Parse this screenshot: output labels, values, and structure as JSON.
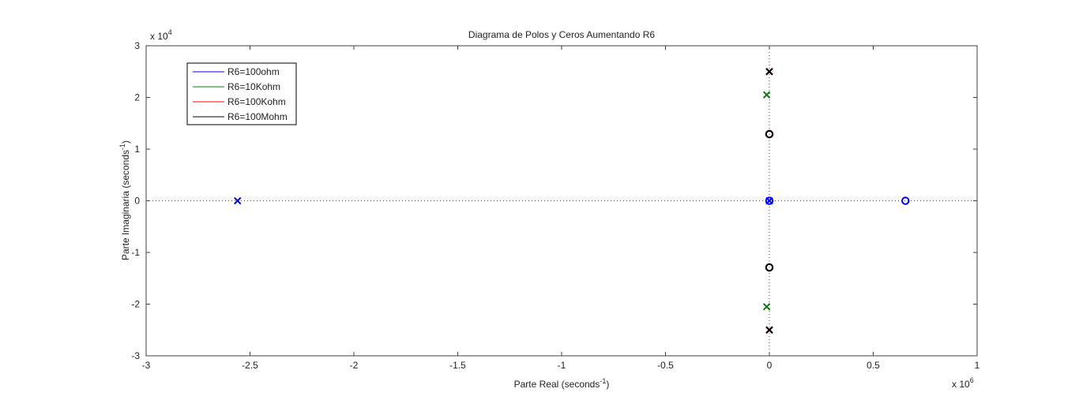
{
  "chart_data": {
    "type": "scatter",
    "title": "Diagrama de Polos y Ceros Aumentando R6",
    "xlabel": "Parte Real (seconds",
    "xlabel_sup": "-1",
    "xlabel_tail": ")",
    "ylabel": "Parte Imaginaria (seconds",
    "ylabel_sup": "-1",
    "ylabel_tail": ")",
    "x_exponent_base": "x 10",
    "x_exponent": "6",
    "y_exponent_base": "x 10",
    "y_exponent": "4",
    "xlim": [
      -3,
      1
    ],
    "ylim": [
      -3,
      3
    ],
    "xticks": [
      -3,
      -2.5,
      -2,
      -1.5,
      -1,
      -0.5,
      0,
      0.5,
      1
    ],
    "xtick_labels": [
      "-3",
      "-2.5",
      "-2",
      "-1.5",
      "-1",
      "-0.5",
      "0",
      "0.5",
      "1"
    ],
    "yticks": [
      -3,
      -2,
      -1,
      0,
      1,
      2,
      3
    ],
    "ytick_labels": [
      "-3",
      "-2",
      "-1",
      "0",
      "1",
      "2",
      "3"
    ],
    "legend_position": "top-left",
    "grid": false,
    "zero_axes_dotted": true,
    "series": [
      {
        "name": "R6=100ohm",
        "color": "#0000ff",
        "poles": [
          [
            -2.56,
            0
          ],
          [
            0,
            0
          ]
        ],
        "zeros": [
          [
            0.655,
            0
          ],
          [
            0,
            0
          ]
        ]
      },
      {
        "name": "R6=10Kohm",
        "color": "#008000",
        "poles": [
          [
            -0.013,
            2.05
          ],
          [
            -0.013,
            -2.05
          ]
        ],
        "zeros": [
          [
            0,
            1.29
          ],
          [
            0,
            -1.29
          ]
        ]
      },
      {
        "name": "R6=100Kohm",
        "color": "#ff0000",
        "poles": [
          [
            0,
            2.5
          ],
          [
            0,
            -2.5
          ]
        ],
        "zeros": [
          [
            0,
            1.29
          ],
          [
            0,
            -1.29
          ]
        ]
      },
      {
        "name": "R6=100Mohm",
        "color": "#000000",
        "poles": [
          [
            0,
            2.5
          ],
          [
            0,
            -2.5
          ]
        ],
        "zeros": [
          [
            0,
            1.29
          ],
          [
            0,
            -1.29
          ]
        ]
      }
    ]
  }
}
